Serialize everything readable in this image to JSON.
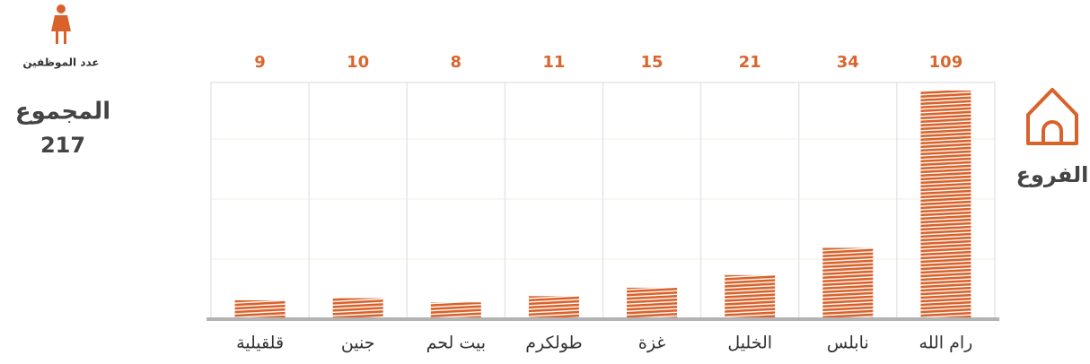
{
  "chart_data": {
    "type": "bar",
    "value_label": "عدد الموظفين",
    "total_label": "المجموع",
    "total": 217,
    "category_label": "الفروع",
    "categories": [
      "رام الله",
      "نابلس",
      "الخليل",
      "غزة",
      "طولكرم",
      "بيت لحم",
      "جنين",
      "قلقيلية"
    ],
    "values": [
      109,
      34,
      21,
      15,
      11,
      8,
      10,
      9
    ],
    "color": "#d9622b",
    "label_color": "#d9662e"
  }
}
